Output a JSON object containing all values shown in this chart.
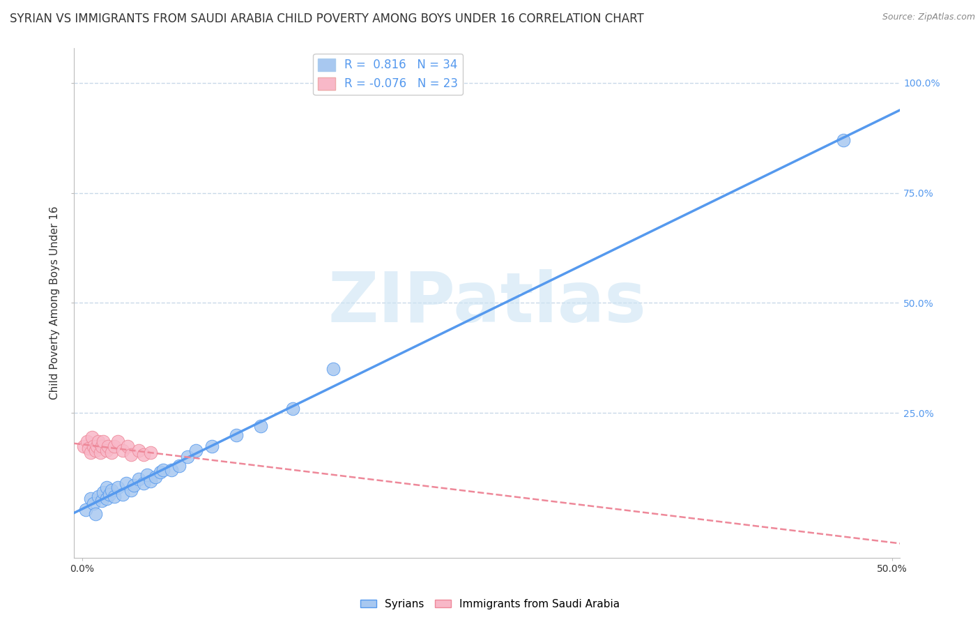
{
  "title": "SYRIAN VS IMMIGRANTS FROM SAUDI ARABIA CHILD POVERTY AMONG BOYS UNDER 16 CORRELATION CHART",
  "source": "Source: ZipAtlas.com",
  "ylabel": "Child Poverty Among Boys Under 16",
  "watermark": "ZIPatlas",
  "legend_label1": "Syrians",
  "legend_label2": "Immigrants from Saudi Arabia",
  "R1": 0.816,
  "N1": 34,
  "R2": -0.076,
  "N2": 23,
  "color1": "#a8c8f0",
  "color2": "#f8b8c8",
  "line_color1": "#5599ee",
  "line_color2": "#ee8899",
  "xlim": [
    -0.005,
    0.505
  ],
  "ylim": [
    -0.08,
    1.08
  ],
  "yticks": [
    0.25,
    0.5,
    0.75,
    1.0
  ],
  "ytick_labels": [
    "25.0%",
    "50.0%",
    "75.0%",
    "100.0%"
  ],
  "xtick_positions": [
    0.0,
    0.5
  ],
  "xtick_labels": [
    "0.0%",
    "50.0%"
  ],
  "blue_x": [
    0.002,
    0.005,
    0.007,
    0.008,
    0.01,
    0.012,
    0.013,
    0.015,
    0.015,
    0.017,
    0.018,
    0.02,
    0.022,
    0.025,
    0.027,
    0.03,
    0.032,
    0.035,
    0.038,
    0.04,
    0.042,
    0.045,
    0.048,
    0.05,
    0.055,
    0.06,
    0.065,
    0.07,
    0.08,
    0.095,
    0.11,
    0.13,
    0.155,
    0.47
  ],
  "blue_y": [
    0.03,
    0.055,
    0.045,
    0.02,
    0.06,
    0.05,
    0.07,
    0.055,
    0.08,
    0.065,
    0.075,
    0.06,
    0.08,
    0.065,
    0.09,
    0.075,
    0.085,
    0.1,
    0.09,
    0.11,
    0.095,
    0.105,
    0.115,
    0.12,
    0.12,
    0.13,
    0.15,
    0.165,
    0.175,
    0.2,
    0.22,
    0.26,
    0.35,
    0.87
  ],
  "pink_x": [
    0.001,
    0.003,
    0.004,
    0.005,
    0.006,
    0.007,
    0.008,
    0.009,
    0.01,
    0.011,
    0.012,
    0.013,
    0.015,
    0.016,
    0.018,
    0.02,
    0.022,
    0.025,
    0.028,
    0.03,
    0.035,
    0.038,
    0.042
  ],
  "pink_y": [
    0.175,
    0.185,
    0.17,
    0.16,
    0.195,
    0.175,
    0.165,
    0.175,
    0.185,
    0.16,
    0.175,
    0.185,
    0.165,
    0.175,
    0.16,
    0.175,
    0.185,
    0.165,
    0.175,
    0.155,
    0.165,
    0.155,
    0.16
  ],
  "background_color": "#ffffff",
  "grid_color": "#c8d8e8",
  "title_fontsize": 12,
  "axis_fontsize": 11,
  "tick_fontsize": 10,
  "watermark_fontsize": 72,
  "watermark_color": "#cce4f4",
  "watermark_alpha": 0.6
}
